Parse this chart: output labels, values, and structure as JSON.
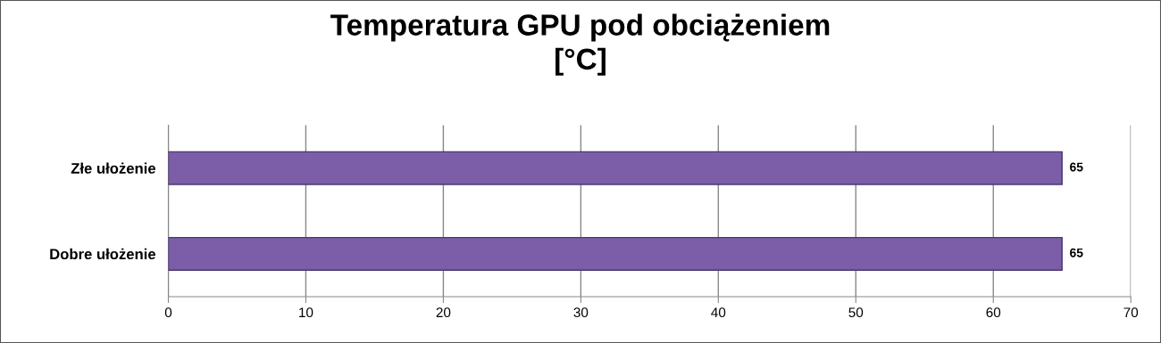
{
  "chart_data": {
    "type": "bar",
    "orientation": "horizontal",
    "title": "Temperatura GPU pod obciążeniem\n[°C]",
    "categories": [
      "Złe ułożenie",
      "Dobre ułożenie"
    ],
    "values": [
      65,
      65
    ],
    "color": "#7b5ea7",
    "xlim": [
      0,
      70
    ],
    "xticks": [
      0,
      10,
      20,
      30,
      40,
      50,
      60,
      70
    ],
    "grid": "x",
    "data_labels": true
  }
}
